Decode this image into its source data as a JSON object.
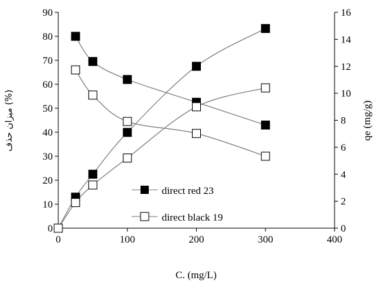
{
  "chart_data": {
    "type": "line",
    "title": "",
    "xlabel": "C. (mg/L)",
    "ylabel_left": "میزان حذف (%)",
    "ylabel_right": "qe (mg/g)",
    "xlim": [
      0,
      400
    ],
    "ylim_left": [
      0,
      90
    ],
    "ylim_right": [
      0,
      16
    ],
    "x_ticks": [
      "0",
      "100",
      "200",
      "300",
      "400"
    ],
    "y_left_ticks": [
      "0",
      "10",
      "20",
      "30",
      "40",
      "50",
      "60",
      "70",
      "80",
      "90"
    ],
    "y_right_ticks": [
      "0",
      "2",
      "4",
      "6",
      "8",
      "10",
      "12",
      "14",
      "16"
    ],
    "grid": false,
    "legend_position": "lower-center",
    "series": [
      {
        "name": "direct red 23",
        "marker": "filled-square",
        "axis": "left",
        "x": [
          25,
          50,
          100,
          200,
          300
        ],
        "values": [
          80,
          69.5,
          62,
          52.5,
          43
        ]
      },
      {
        "name": "direct black 19",
        "marker": "open-square",
        "axis": "left",
        "x": [
          25,
          50,
          100,
          200,
          300
        ],
        "values": [
          66,
          55.5,
          44.5,
          39.5,
          30
        ]
      },
      {
        "name": "",
        "marker": "filled-square",
        "axis": "right",
        "x": [
          0,
          25,
          50,
          100,
          200,
          300
        ],
        "values": [
          0,
          2.3,
          4,
          7.1,
          12,
          14.8
        ]
      },
      {
        "name": "",
        "marker": "open-square",
        "axis": "right",
        "x": [
          0,
          25,
          50,
          100,
          200,
          300
        ],
        "values": [
          0,
          1.9,
          3.2,
          5.2,
          9,
          10.4
        ]
      }
    ]
  }
}
